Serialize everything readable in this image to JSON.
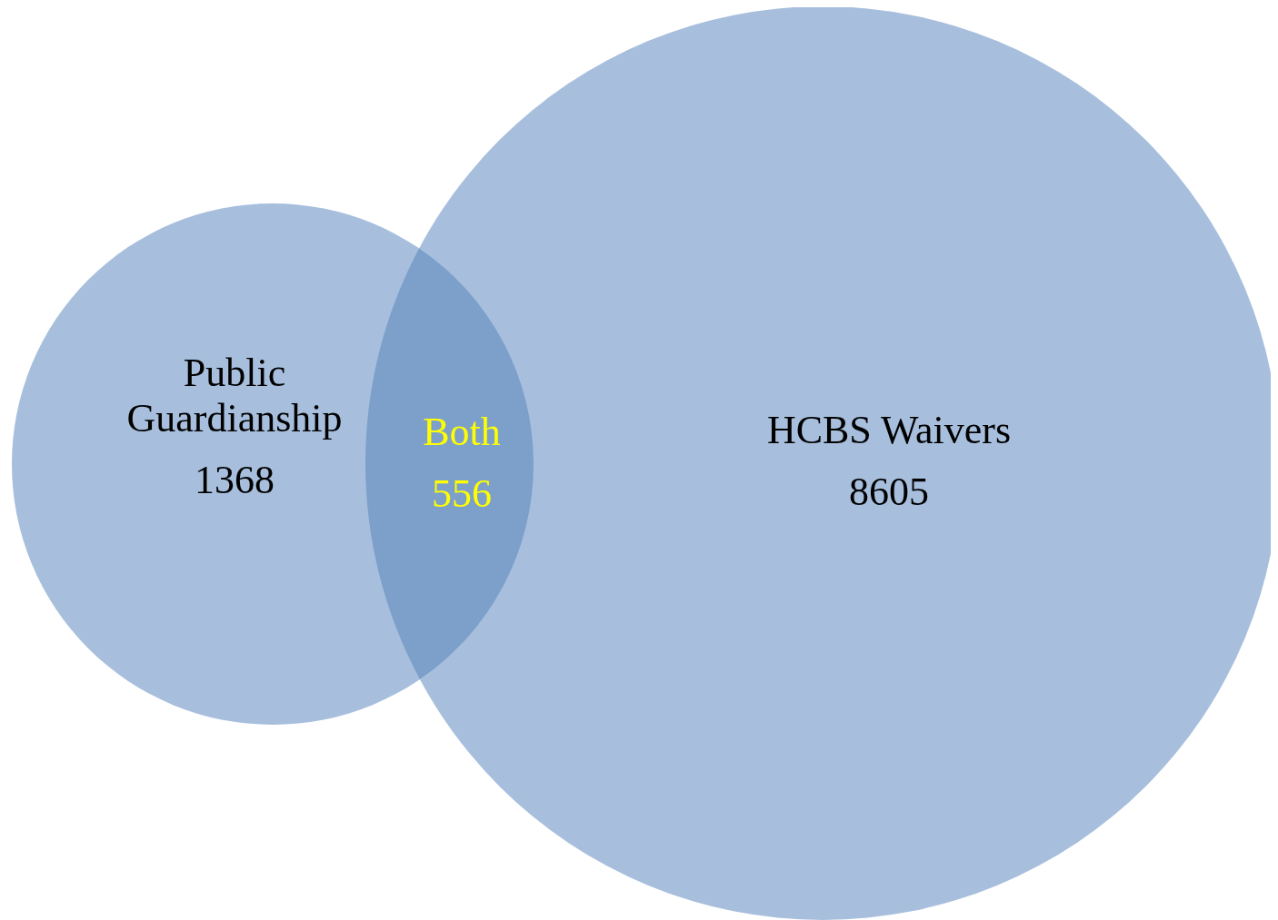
{
  "chart_data": {
    "type": "other",
    "categories": [
      "Public Guardianship",
      "Both",
      "HCBS Waivers"
    ],
    "values": [
      1368,
      556,
      8605
    ],
    "colors": [
      "#a7bfdd",
      "#7da0cb",
      "#a7bfdd"
    ],
    "data_labels": true
  }
}
